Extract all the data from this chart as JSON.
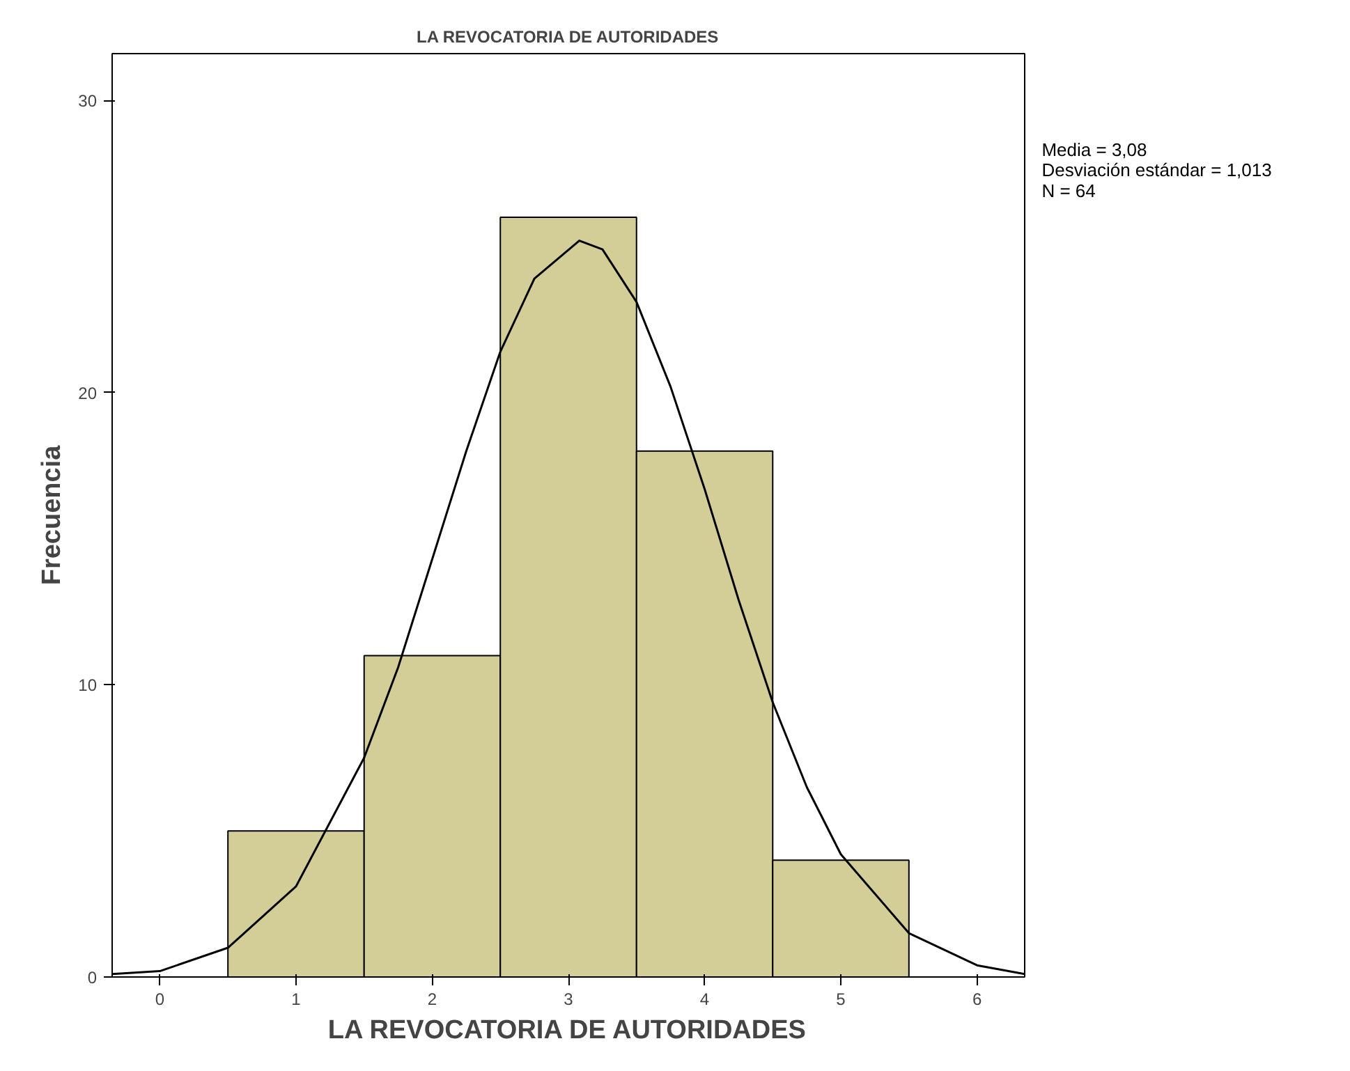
{
  "chart_data": {
    "type": "histogram",
    "title": "LA REVOCATORIA DE AUTORIDADES",
    "xlabel": "LA REVOCATORIA DE AUTORIDADES",
    "ylabel": "Frecuencia",
    "bins": [
      0.5,
      1.5,
      2.5,
      3.5,
      4.5,
      5.5
    ],
    "values": [
      5,
      11,
      26,
      18,
      4
    ],
    "color": "#d3ce97",
    "series": [
      {
        "type": "line",
        "color": "#000000",
        "x": [
          -0.35,
          0,
          0.5,
          1,
          1.5,
          1.75,
          2,
          2.25,
          2.5,
          2.75,
          3.08,
          3.25,
          3.5,
          3.75,
          4,
          4.25,
          4.5,
          4.75,
          5,
          5.5,
          6,
          6.35
        ],
        "values": [
          0.1,
          0.2,
          1,
          3.1,
          7.5,
          10.6,
          14.3,
          18,
          21.4,
          23.9,
          25.2,
          24.9,
          23.1,
          20.2,
          16.7,
          12.9,
          9.4,
          6.5,
          4.2,
          1.5,
          0.4,
          0.1
        ]
      }
    ],
    "xlim": [
      -0.35,
      6.35
    ],
    "ylim": [
      0,
      31.6
    ],
    "xticks": [
      0,
      1,
      2,
      3,
      4,
      5,
      6
    ],
    "yticks": [
      0,
      10,
      20,
      30
    ],
    "grid": false,
    "annotations": [
      "Media = 3,08",
      "Desviación estándar = 1,013",
      "N = 64"
    ]
  }
}
